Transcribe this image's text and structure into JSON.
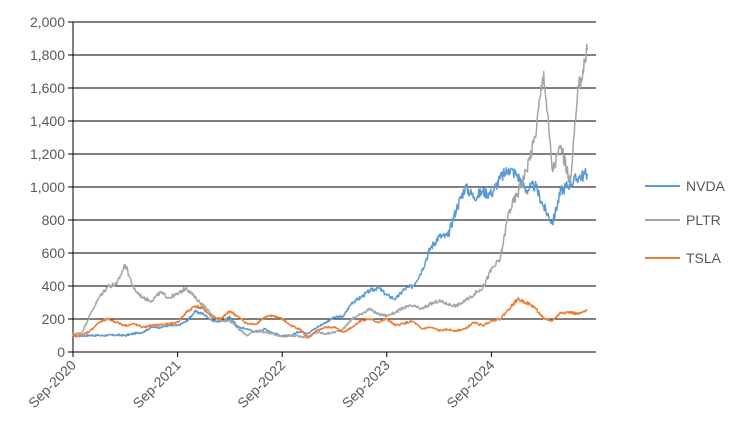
{
  "chart_data": {
    "type": "line",
    "title": "",
    "xlabel": "",
    "ylabel": "",
    "ylim": [
      0,
      2000
    ],
    "yticks": [
      0,
      200,
      400,
      600,
      800,
      1000,
      1200,
      1400,
      1600,
      1800,
      2000
    ],
    "ytick_labels": [
      "0",
      "200",
      "400",
      "600",
      "800",
      "1,000",
      "1,200",
      "1,400",
      "1,600",
      "1,800",
      "2,000"
    ],
    "xlim": [
      "2020-09",
      "2025-09"
    ],
    "xticks": [
      "2020-09",
      "2021-09",
      "2022-09",
      "2023-09",
      "2024-09"
    ],
    "xtick_labels": [
      "Sep-2020",
      "Sep-2021",
      "Sep-2022",
      "Sep-2023",
      "Sep-2024"
    ],
    "grid": "horizontal",
    "legend_position": "right",
    "series": [
      {
        "name": "NVDA",
        "color": "#5B9BD5",
        "points": [
          [
            "2020-09",
            100
          ],
          [
            "2020-10",
            98
          ],
          [
            "2020-11",
            101
          ],
          [
            "2020-12",
            100
          ],
          [
            "2021-01",
            101
          ],
          [
            "2021-02",
            103
          ],
          [
            "2021-03",
            100
          ],
          [
            "2021-04",
            112
          ],
          [
            "2021-05",
            120
          ],
          [
            "2021-06",
            150
          ],
          [
            "2021-07",
            150
          ],
          [
            "2021-08",
            160
          ],
          [
            "2021-09",
            160
          ],
          [
            "2021-10",
            185
          ],
          [
            "2021-11",
            245
          ],
          [
            "2021-12",
            230
          ],
          [
            "2022-01",
            190
          ],
          [
            "2022-02",
            185
          ],
          [
            "2022-03",
            210
          ],
          [
            "2022-04",
            150
          ],
          [
            "2022-05",
            140
          ],
          [
            "2022-06",
            120
          ],
          [
            "2022-07",
            140
          ],
          [
            "2022-08",
            115
          ],
          [
            "2022-09",
            95
          ],
          [
            "2022-10",
            100
          ],
          [
            "2022-11",
            125
          ],
          [
            "2022-12",
            115
          ],
          [
            "2023-01",
            150
          ],
          [
            "2023-02",
            180
          ],
          [
            "2023-03",
            210
          ],
          [
            "2023-04",
            215
          ],
          [
            "2023-05",
            300
          ],
          [
            "2023-06",
            330
          ],
          [
            "2023-07",
            370
          ],
          [
            "2023-08",
            390
          ],
          [
            "2023-09",
            345
          ],
          [
            "2023-10",
            320
          ],
          [
            "2023-11",
            380
          ],
          [
            "2023-12",
            400
          ],
          [
            "2024-01",
            490
          ],
          [
            "2024-02",
            630
          ],
          [
            "2024-03",
            700
          ],
          [
            "2024-04",
            700
          ],
          [
            "2024-05",
            870
          ],
          [
            "2024-06",
            1000
          ],
          [
            "2024-07",
            940
          ],
          [
            "2024-08",
            970
          ],
          [
            "2024-09",
            960
          ],
          [
            "2024-10",
            1050
          ],
          [
            "2024-11",
            1110
          ],
          [
            "2024-12",
            1070
          ],
          [
            "2025-01",
            980
          ],
          [
            "2025-02",
            1010
          ],
          [
            "2025-03",
            880
          ],
          [
            "2025-04",
            780
          ],
          [
            "2025-05",
            980
          ],
          [
            "2025-06",
            1020
          ],
          [
            "2025-07",
            1060
          ],
          [
            "2025-08",
            1080
          ]
        ]
      },
      {
        "name": "PLTR",
        "color": "#A5A5A5",
        "points": [
          [
            "2020-09",
            110
          ],
          [
            "2020-10",
            115
          ],
          [
            "2020-11",
            230
          ],
          [
            "2020-12",
            330
          ],
          [
            "2021-01",
            400
          ],
          [
            "2021-02",
            410
          ],
          [
            "2021-03",
            530
          ],
          [
            "2021-04",
            380
          ],
          [
            "2021-05",
            330
          ],
          [
            "2021-06",
            310
          ],
          [
            "2021-07",
            360
          ],
          [
            "2021-08",
            330
          ],
          [
            "2021-09",
            350
          ],
          [
            "2021-10",
            390
          ],
          [
            "2021-11",
            330
          ],
          [
            "2021-12",
            280
          ],
          [
            "2022-01",
            220
          ],
          [
            "2022-02",
            190
          ],
          [
            "2022-03",
            190
          ],
          [
            "2022-04",
            140
          ],
          [
            "2022-05",
            100
          ],
          [
            "2022-06",
            130
          ],
          [
            "2022-07",
            120
          ],
          [
            "2022-08",
            110
          ],
          [
            "2022-09",
            95
          ],
          [
            "2022-10",
            100
          ],
          [
            "2022-11",
            95
          ],
          [
            "2022-12",
            90
          ],
          [
            "2023-01",
            120
          ],
          [
            "2023-02",
            110
          ],
          [
            "2023-03",
            120
          ],
          [
            "2023-04",
            140
          ],
          [
            "2023-05",
            200
          ],
          [
            "2023-06",
            230
          ],
          [
            "2023-07",
            260
          ],
          [
            "2023-08",
            230
          ],
          [
            "2023-09",
            220
          ],
          [
            "2023-10",
            240
          ],
          [
            "2023-11",
            270
          ],
          [
            "2023-12",
            280
          ],
          [
            "2024-01",
            260
          ],
          [
            "2024-02",
            290
          ],
          [
            "2024-03",
            310
          ],
          [
            "2024-04",
            290
          ],
          [
            "2024-05",
            280
          ],
          [
            "2024-06",
            310
          ],
          [
            "2024-07",
            350
          ],
          [
            "2024-08",
            390
          ],
          [
            "2024-09",
            500
          ],
          [
            "2024-10",
            560
          ],
          [
            "2024-11",
            850
          ],
          [
            "2024-12",
            960
          ],
          [
            "2025-01",
            1100
          ],
          [
            "2025-02",
            1300
          ],
          [
            "2025-03",
            1700
          ],
          [
            "2025-04",
            1100
          ],
          [
            "2025-05",
            1250
          ],
          [
            "2025-06",
            1020
          ],
          [
            "2025-07",
            1600
          ],
          [
            "2025-08",
            1830
          ]
        ]
      },
      {
        "name": "TSLA",
        "color": "#ED7D31",
        "points": [
          [
            "2020-09",
            95
          ],
          [
            "2020-10",
            100
          ],
          [
            "2020-11",
            130
          ],
          [
            "2020-12",
            180
          ],
          [
            "2021-01",
            200
          ],
          [
            "2021-02",
            180
          ],
          [
            "2021-03",
            160
          ],
          [
            "2021-04",
            170
          ],
          [
            "2021-05",
            150
          ],
          [
            "2021-06",
            160
          ],
          [
            "2021-07",
            165
          ],
          [
            "2021-08",
            170
          ],
          [
            "2021-09",
            180
          ],
          [
            "2021-10",
            240
          ],
          [
            "2021-11",
            280
          ],
          [
            "2021-12",
            260
          ],
          [
            "2022-01",
            210
          ],
          [
            "2022-02",
            200
          ],
          [
            "2022-03",
            250
          ],
          [
            "2022-04",
            210
          ],
          [
            "2022-05",
            170
          ],
          [
            "2022-06",
            170
          ],
          [
            "2022-07",
            210
          ],
          [
            "2022-08",
            220
          ],
          [
            "2022-09",
            200
          ],
          [
            "2022-10",
            160
          ],
          [
            "2022-11",
            140
          ],
          [
            "2022-12",
            85
          ],
          [
            "2023-01",
            130
          ],
          [
            "2023-02",
            150
          ],
          [
            "2023-03",
            150
          ],
          [
            "2023-04",
            120
          ],
          [
            "2023-05",
            150
          ],
          [
            "2023-06",
            190
          ],
          [
            "2023-07",
            200
          ],
          [
            "2023-08",
            180
          ],
          [
            "2023-09",
            200
          ],
          [
            "2023-10",
            160
          ],
          [
            "2023-11",
            175
          ],
          [
            "2023-12",
            185
          ],
          [
            "2024-01",
            140
          ],
          [
            "2024-02",
            150
          ],
          [
            "2024-03",
            130
          ],
          [
            "2024-04",
            135
          ],
          [
            "2024-05",
            130
          ],
          [
            "2024-06",
            140
          ],
          [
            "2024-07",
            180
          ],
          [
            "2024-08",
            160
          ],
          [
            "2024-09",
            190
          ],
          [
            "2024-10",
            200
          ],
          [
            "2024-11",
            260
          ],
          [
            "2024-12",
            320
          ],
          [
            "2025-01",
            300
          ],
          [
            "2025-02",
            270
          ],
          [
            "2025-03",
            200
          ],
          [
            "2025-04",
            190
          ],
          [
            "2025-05",
            240
          ],
          [
            "2025-06",
            240
          ],
          [
            "2025-07",
            230
          ],
          [
            "2025-08",
            250
          ]
        ]
      }
    ]
  }
}
